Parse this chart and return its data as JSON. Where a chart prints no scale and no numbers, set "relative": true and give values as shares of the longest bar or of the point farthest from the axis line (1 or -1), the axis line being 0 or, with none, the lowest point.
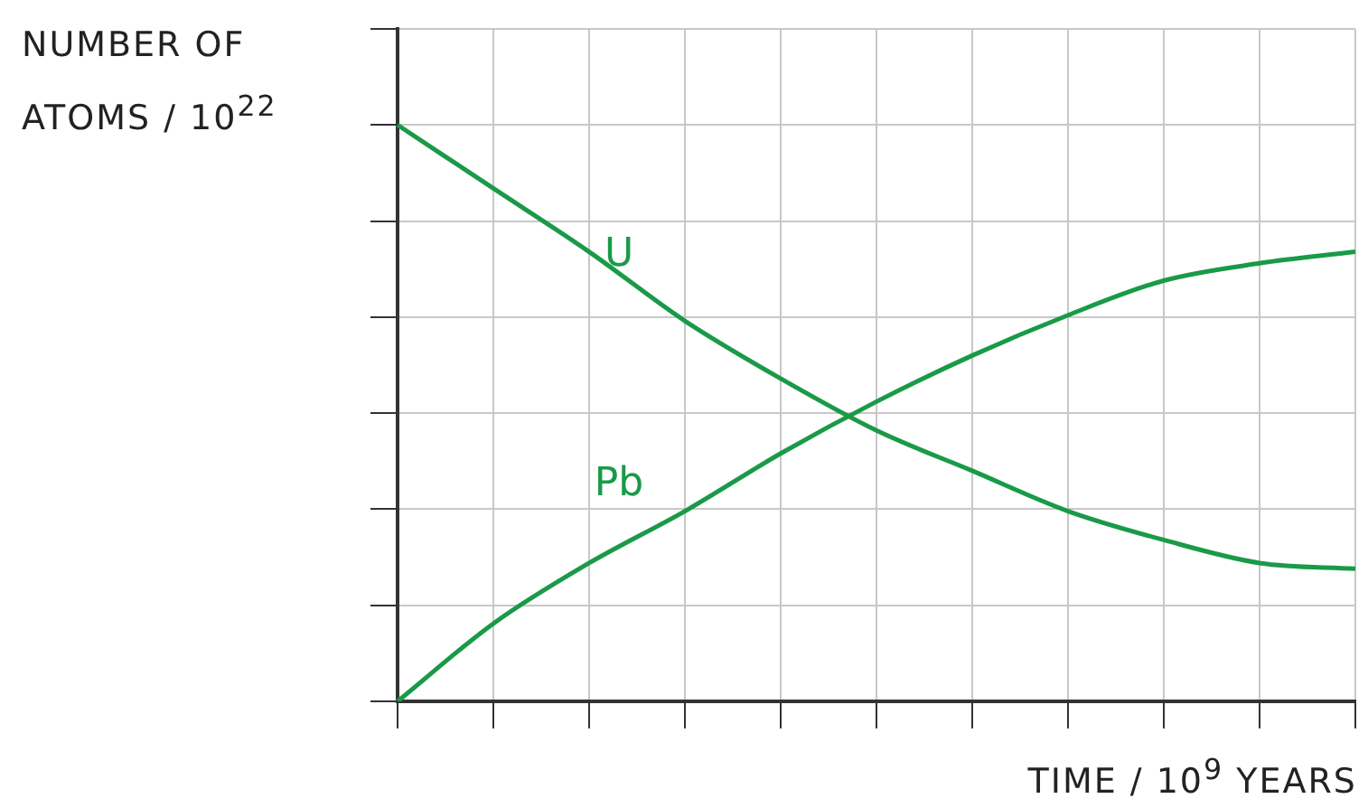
{
  "chart_data": {
    "type": "line",
    "relative": true,
    "xlabel": "TIME / 10$^{9}$ YEARS",
    "ylabel": "NUMBER OF ATOMS / 10$^{22}$",
    "categories": [
      null,
      null,
      null,
      null,
      null,
      null,
      null,
      null,
      null,
      null,
      null
    ],
    "series": [
      {
        "name": "U",
        "color": "#1a9a48",
        "values": [
          1,
          0.89,
          0.78,
          0.66,
          0.56,
          0.47,
          0.4,
          0.33,
          0.28,
          0.24,
          0.23
        ]
      },
      {
        "name": "Pb",
        "color": "#1a9a48",
        "values": [
          0,
          0.135,
          0.24,
          0.33,
          0.43,
          0.52,
          0.6,
          0.67,
          0.73,
          0.76,
          0.78
        ]
      }
    ],
    "grid": true,
    "legend": false,
    "marker": "none",
    "line_style": "solid"
  }
}
